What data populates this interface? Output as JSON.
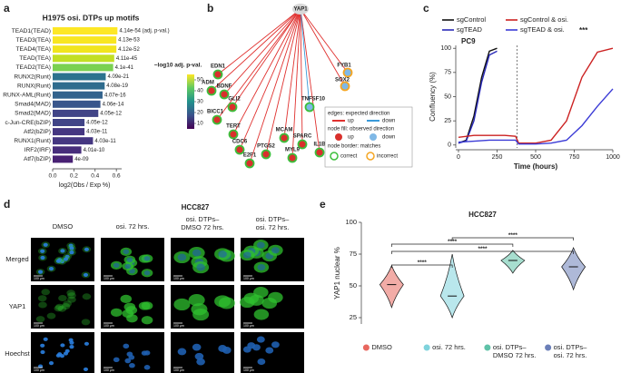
{
  "panel_labels": [
    "a",
    "b",
    "c",
    "d",
    "e"
  ],
  "chart_data": [
    {
      "type": "barh",
      "title": "H1975 osi. DTPs up motifs",
      "categories": [
        "TEAD1(TEAD)",
        "TEAD3(TEA)",
        "TEAD4(TEA)",
        "TEAD(TEA)",
        "TEAD2(TEA)",
        "RUNX2(Runt)",
        "RUNX(Runt)",
        "RUNX-AML(Runt)",
        "Smad4(MAD)",
        "Smad2(MAD)",
        "c-Jun-CRE(bZIP)",
        "Atf2(bZIP)",
        "RUNX1(Runt)",
        "IRF2(IRF)",
        "Atf7(bZIP)"
      ],
      "values": [
        0.61,
        0.6,
        0.6,
        0.58,
        0.57,
        0.5,
        0.49,
        0.47,
        0.45,
        0.43,
        0.3,
        0.3,
        0.38,
        0.27,
        0.19
      ],
      "colors": [
        "#fde725",
        "#f8e621",
        "#f1e51d",
        "#c2df23",
        "#7ad151",
        "#2c728e",
        "#2f6c8e",
        "#33638d",
        "#39568c",
        "#414487",
        "#414487",
        "#453781",
        "#453781",
        "#472d7b",
        "#482173"
      ],
      "annotations": [
        "4.14e-54 (adj. p-val.)",
        "4.13e-53",
        "4.12e-52",
        "4.11e-45",
        "4.1e-41",
        "4.09e-21",
        "4.08e-19",
        "4.07e-16",
        "4.06e-14",
        "4.05e-12",
        "4.05e-12",
        "4.03e-11",
        "4.03e-11",
        "4.01e-10",
        "4e-09"
      ],
      "xlabel": "log2(Obs / Exp %)",
      "xlim": [
        0,
        0.65
      ],
      "xticks": [
        {
          "value": 0,
          "label": "0.0"
        },
        {
          "value": 0.2,
          "label": "0.2"
        },
        {
          "value": 0.4,
          "label": "0.4"
        },
        {
          "value": 0.6,
          "label": "0.6"
        }
      ],
      "colorbar": {
        "label": "−log10 adj. p-val.",
        "lim": [
          5,
          55
        ],
        "ticks": [
          10,
          20,
          30,
          40,
          50
        ]
      }
    },
    {
      "type": "line",
      "title": "PC9",
      "xlabel": "Time (hours)",
      "ylabel": "Confluency (%)",
      "xlim": [
        0,
        1000
      ],
      "ylim": [
        -3,
        103
      ],
      "xticks": [
        0,
        250,
        500,
        750,
        1000
      ],
      "yticks": [
        0,
        25,
        50,
        75,
        100
      ],
      "vline": 380,
      "annotation": "***",
      "series": [
        {
          "name": "sgControl",
          "color": "#111111",
          "x": [
            0,
            50,
            100,
            150,
            200,
            250
          ],
          "values": [
            2,
            5,
            30,
            70,
            97,
            100
          ]
        },
        {
          "name": "sgTEAD",
          "color": "#2a2ab8",
          "x": [
            0,
            50,
            100,
            150,
            200,
            250
          ],
          "values": [
            2,
            4,
            25,
            65,
            93,
            97
          ]
        },
        {
          "name": "sgControl & osi.",
          "color": "#cc2222",
          "x": [
            0,
            100,
            200,
            300,
            370,
            390,
            500,
            600,
            700,
            800,
            900,
            1000
          ],
          "values": [
            8,
            10,
            10,
            10,
            9,
            2,
            2,
            5,
            25,
            70,
            96,
            100
          ]
        },
        {
          "name": "sgTEAD & osi.",
          "color": "#3b3bd6",
          "x": [
            0,
            100,
            200,
            300,
            370,
            390,
            500,
            600,
            700,
            800,
            900,
            1000
          ],
          "values": [
            3,
            4,
            5,
            5,
            5,
            1,
            1,
            2,
            5,
            20,
            40,
            58
          ]
        }
      ]
    },
    {
      "type": "violin",
      "title": "HCC827",
      "ylabel": "YAP1 nuclear %",
      "categories": [
        [
          "DMSO"
        ],
        [
          "osi. 72 hrs."
        ],
        [
          "osi. DTPs–",
          "DMSO 72 hrs."
        ],
        [
          "osi. DTPs–",
          "osi. 72 hrs."
        ]
      ],
      "colors": [
        "#e8675f",
        "#7fd3dc",
        "#5fc2a8",
        "#6b7fb8"
      ],
      "medians": [
        51,
        42,
        70,
        65
      ],
      "mins": [
        33,
        25,
        60,
        47
      ],
      "maxs": [
        66,
        75,
        78,
        80
      ],
      "ylim": [
        20,
        100
      ],
      "yticks": [
        25,
        50,
        75,
        100
      ],
      "comparisons": [
        {
          "groups": [
            1,
            3
          ],
          "label": "****"
        },
        {
          "groups": [
            0,
            2
          ],
          "label": "****"
        },
        {
          "groups": [
            0,
            3
          ],
          "label": "****"
        },
        {
          "groups": [
            0,
            1
          ],
          "label": "****"
        }
      ]
    }
  ],
  "network": {
    "hub": "YAP1",
    "nodes": [
      {
        "label": "EDN1",
        "fill": "up",
        "border": "correct",
        "edge": "up"
      },
      {
        "label": "ADM",
        "fill": "up",
        "border": "correct",
        "edge": "up"
      },
      {
        "label": "BDNF",
        "fill": "up",
        "border": "correct",
        "edge": "up"
      },
      {
        "label": "GLI2",
        "fill": "up",
        "border": "correct",
        "edge": "up"
      },
      {
        "label": "BICC1",
        "fill": "up",
        "border": "correct",
        "edge": "up"
      },
      {
        "label": "TERT",
        "fill": "up",
        "border": "correct",
        "edge": "up"
      },
      {
        "label": "CDC6",
        "fill": "up",
        "border": "correct",
        "edge": "up"
      },
      {
        "label": "PTGS2",
        "fill": "up",
        "border": "correct",
        "edge": "up"
      },
      {
        "label": "E2F1",
        "fill": "up",
        "border": "correct",
        "edge": "up"
      },
      {
        "label": "MCAM",
        "fill": "up",
        "border": "correct",
        "edge": "up"
      },
      {
        "label": "MYL9",
        "fill": "up",
        "border": "correct",
        "edge": "up"
      },
      {
        "label": "SPARC",
        "fill": "up",
        "border": "correct",
        "edge": "up"
      },
      {
        "label": "IL1B",
        "fill": "up",
        "border": "correct",
        "edge": "up"
      },
      {
        "label": "TNFSF10",
        "fill": "down",
        "border": "correct",
        "edge": "down"
      },
      {
        "label": "FYB1",
        "fill": "down",
        "border": "incorrect",
        "edge": "up"
      },
      {
        "label": "SOX2",
        "fill": "down",
        "border": "incorrect",
        "edge": "up"
      }
    ],
    "legend": {
      "edges": "edges: expected direction",
      "fill": "node fill: observed direction",
      "border": "node border: matches",
      "up": "up",
      "down": "down",
      "correct": "correct",
      "incorrect": "incorrect"
    }
  },
  "micrographs": {
    "title": "HCC827",
    "columns": [
      [
        "DMSO"
      ],
      [
        "osi. 72 hrs."
      ],
      [
        "osi. DTPs–",
        "DMSO 72 hrs."
      ],
      [
        "osi. DTPs–",
        "osi. 72 hrs."
      ]
    ],
    "rows": [
      "Merged",
      "YAP1",
      "Hoechst"
    ],
    "scale_bar": "100 μm"
  }
}
